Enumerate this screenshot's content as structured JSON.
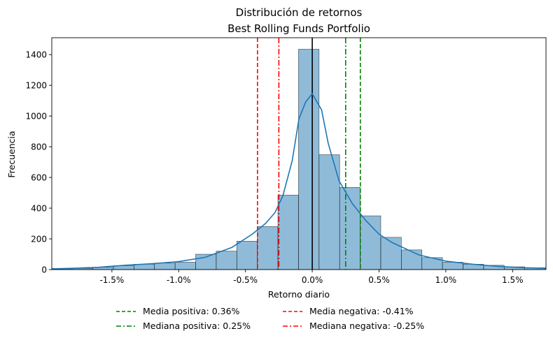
{
  "chart_data": {
    "type": "bar",
    "title": "Distribución de retornos",
    "subtitle": "Best Rolling Funds Portfolio",
    "xlabel": "Retorno diario",
    "ylabel": "Frecuencia",
    "xlim": [
      -1.95,
      1.75
    ],
    "ylim": [
      0,
      1510
    ],
    "x_ticks": [
      -1.5,
      -1.0,
      -0.5,
      0.0,
      0.5,
      1.0,
      1.5
    ],
    "x_tick_labels": [
      "-1.5%",
      "-1.0%",
      "-0.5%",
      "0.0%",
      "0.5%",
      "1.0%",
      "1.5%"
    ],
    "y_ticks": [
      0,
      200,
      400,
      600,
      800,
      1000,
      1200,
      1400
    ],
    "y_tick_labels": [
      "0",
      "200",
      "400",
      "600",
      "800",
      "1000",
      "1200",
      "1400"
    ],
    "histogram": {
      "bin_width": 0.154,
      "bin_lefts": [
        -1.951,
        -1.797,
        -1.643,
        -1.489,
        -1.335,
        -1.181,
        -1.027,
        -0.873,
        -0.719,
        -0.565,
        -0.411,
        -0.257,
        -0.103,
        0.051,
        0.205,
        0.359,
        0.513,
        0.667,
        0.821,
        0.975,
        1.129,
        1.283,
        1.437,
        1.591
      ],
      "counts": [
        5,
        8,
        15,
        25,
        35,
        42,
        48,
        100,
        120,
        185,
        280,
        485,
        1435,
        748,
        535,
        350,
        210,
        128,
        78,
        48,
        35,
        28,
        18,
        12
      ],
      "color": "#1f77b4"
    },
    "kde": {
      "x": [
        -1.95,
        -1.8,
        -1.6,
        -1.4,
        -1.2,
        -1.0,
        -0.8,
        -0.6,
        -0.45,
        -0.35,
        -0.28,
        -0.22,
        -0.15,
        -0.1,
        -0.05,
        0.0,
        0.07,
        0.12,
        0.2,
        0.3,
        0.4,
        0.5,
        0.6,
        0.8,
        1.0,
        1.2,
        1.4,
        1.6,
        1.75
      ],
      "y": [
        5,
        8,
        15,
        28,
        38,
        52,
        80,
        145,
        230,
        300,
        370,
        480,
        710,
        980,
        1090,
        1145,
        1040,
        820,
        580,
        430,
        320,
        230,
        175,
        95,
        55,
        35,
        20,
        12,
        8
      ],
      "color": "#1f77b4"
    },
    "vlines": [
      {
        "name": "Media positiva: 0.36%",
        "x": 0.36,
        "color": "#008000",
        "style": "dashed"
      },
      {
        "name": "Mediana positiva: 0.25%",
        "x": 0.25,
        "color": "#008000",
        "style": "dashdot"
      },
      {
        "name": "Media negativa: -0.41%",
        "x": -0.41,
        "color": "#ff0000",
        "style": "dashed"
      },
      {
        "name": "Mediana negativa: -0.25%",
        "x": -0.25,
        "color": "#ff0000",
        "style": "dashdot"
      },
      {
        "name": "",
        "x": 0.0,
        "color": "#000000",
        "style": "solid"
      }
    ],
    "legend": {
      "position": "bottom-center",
      "columns": 2,
      "entries": [
        {
          "label": "Media positiva: 0.36%",
          "color": "#008000",
          "style": "dashed"
        },
        {
          "label": "Mediana positiva: 0.25%",
          "color": "#008000",
          "style": "dashdot"
        },
        {
          "label": "Media negativa: -0.41%",
          "color": "#ff0000",
          "style": "dashed"
        },
        {
          "label": "Mediana negativa: -0.25%",
          "color": "#ff0000",
          "style": "dashdot"
        }
      ]
    },
    "grid": false
  }
}
